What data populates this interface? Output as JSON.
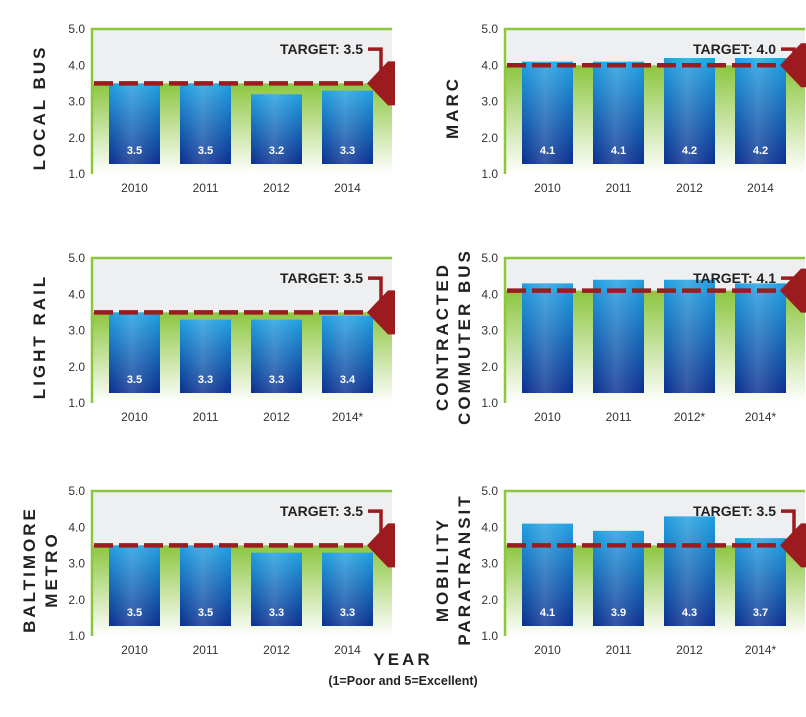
{
  "footer": {
    "title": "YEAR",
    "subtitle": "(1=Poor and 5=Excellent)"
  },
  "colors": {
    "bar_top": "#1f9fe0",
    "bar_bottom": "#0a2f8f",
    "target_line": "#9b1b1f",
    "panel_border": "#8cc63f",
    "panel_bg": "#eeeff1",
    "fill_green": "#8cc63f",
    "label_text": "#ffffff",
    "axis_text": "#333333"
  },
  "chart_data": [
    {
      "type": "bar",
      "panel_label": [
        "LOCAL BUS"
      ],
      "categories": [
        "2010",
        "2011",
        "2012",
        "2014"
      ],
      "values": [
        3.5,
        3.5,
        3.2,
        3.3
      ],
      "data_labels": [
        "3.5",
        "3.5",
        "3.2",
        "3.3"
      ],
      "target": 3.5,
      "target_label": "TARGET: 3.5",
      "yticks": [
        "1.0",
        "2.0",
        "3.0",
        "4.0",
        "5.0"
      ],
      "ylim": [
        1,
        5
      ]
    },
    {
      "type": "bar",
      "panel_label": [
        "MARC"
      ],
      "categories": [
        "2010",
        "2011",
        "2012",
        "2014"
      ],
      "values": [
        4.1,
        4.1,
        4.2,
        4.2
      ],
      "data_labels": [
        "4.1",
        "4.1",
        "4.2",
        "4.2"
      ],
      "target": 4.0,
      "target_label": "TARGET: 4.0",
      "yticks": [
        "1.0",
        "2.0",
        "3.0",
        "4.0",
        "5.0"
      ],
      "ylim": [
        1,
        5
      ]
    },
    {
      "type": "bar",
      "panel_label": [
        "LIGHT RAIL"
      ],
      "categories": [
        "2010",
        "2011",
        "2012",
        "2014*"
      ],
      "values": [
        3.5,
        3.3,
        3.3,
        3.4
      ],
      "data_labels": [
        "3.5",
        "3.3",
        "3.3",
        "3.4"
      ],
      "target": 3.5,
      "target_label": "TARGET: 3.5",
      "yticks": [
        "1.0",
        "2.0",
        "3.0",
        "4.0",
        "5.0"
      ],
      "ylim": [
        1,
        5
      ]
    },
    {
      "type": "bar",
      "panel_label": [
        "CONTRACTED",
        "COMMUTER BUS"
      ],
      "categories": [
        "2010",
        "2011",
        "2012*",
        "2014*"
      ],
      "values": [
        4.3,
        4.4,
        4.4,
        4.3
      ],
      "data_labels": [
        "",
        "",
        "",
        ""
      ],
      "target": 4.1,
      "target_label": "TARGET: 4.1",
      "yticks": [
        "1.0",
        "2.0",
        "3.0",
        "4.0",
        "5.0"
      ],
      "ylim": [
        1,
        5
      ]
    },
    {
      "type": "bar",
      "panel_label": [
        "BALTIMORE",
        "METRO"
      ],
      "categories": [
        "2010",
        "2011",
        "2012",
        "2014"
      ],
      "values": [
        3.5,
        3.5,
        3.3,
        3.3
      ],
      "data_labels": [
        "3.5",
        "3.5",
        "3.3",
        "3.3"
      ],
      "target": 3.5,
      "target_label": "TARGET: 3.5",
      "yticks": [
        "1.0",
        "2.0",
        "3.0",
        "4.0",
        "5.0"
      ],
      "ylim": [
        1,
        5
      ]
    },
    {
      "type": "bar",
      "panel_label": [
        "MOBILITY",
        "PARATRANSIT"
      ],
      "categories": [
        "2010",
        "2011",
        "2012",
        "2014*"
      ],
      "values": [
        4.1,
        3.9,
        4.3,
        3.7
      ],
      "data_labels": [
        "4.1",
        "3.9",
        "4.3",
        "3.7"
      ],
      "target": 3.5,
      "target_label": "TARGET: 3.5",
      "yticks": [
        "1.0",
        "2.0",
        "3.0",
        "4.0",
        "5.0"
      ],
      "ylim": [
        1,
        5
      ]
    }
  ]
}
